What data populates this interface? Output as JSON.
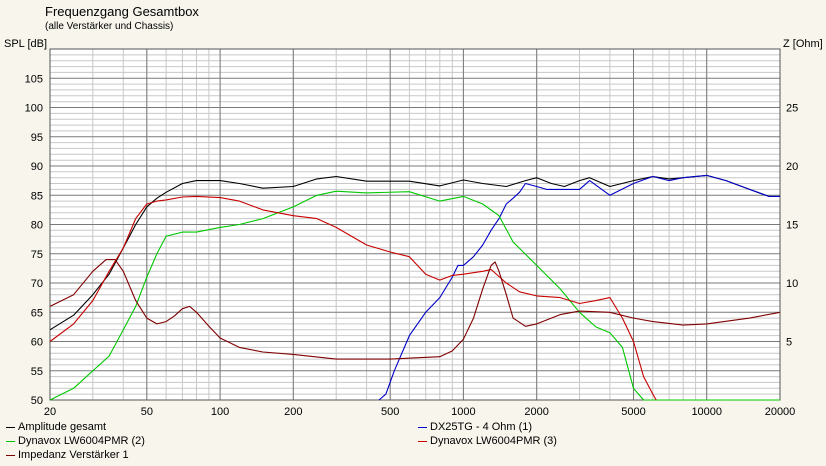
{
  "header": {
    "title": "Frequenzgang Gesamtbox",
    "subtitle": "(alle Verstärker und Chassis)"
  },
  "chart_data": {
    "type": "line",
    "xscale": "log",
    "xlim": [
      20,
      20000
    ],
    "ylim": [
      50,
      110
    ],
    "y2lim": [
      0,
      30
    ],
    "ylabel": "SPL [dB]",
    "y2label": "Z [Ohm]",
    "grid": true,
    "xticks": [
      20,
      50,
      100,
      200,
      500,
      1000,
      2000,
      5000,
      10000,
      20000
    ],
    "xtick_labels": [
      "20",
      "50",
      "100",
      "200",
      "500",
      "1000",
      "2000",
      "5000",
      "10000",
      "20000"
    ],
    "yticks": [
      50,
      55,
      60,
      65,
      70,
      75,
      80,
      85,
      90,
      95,
      100,
      105
    ],
    "ytick_labels": [
      "50",
      "55",
      "60",
      "65",
      "70",
      "75",
      "80",
      "85",
      "90",
      "95",
      "100",
      "105"
    ],
    "y2ticks": [
      5,
      10,
      15,
      20,
      25
    ],
    "y2tick_labels": [
      "5",
      "10",
      "15",
      "20",
      "25"
    ],
    "legend_position": "bottom",
    "series": [
      {
        "name": "Amplitude gesamt",
        "color": "#000000",
        "axis": "left",
        "points": [
          [
            20,
            62
          ],
          [
            25,
            64.5
          ],
          [
            30,
            68
          ],
          [
            35,
            71.5
          ],
          [
            40,
            76
          ],
          [
            45,
            80
          ],
          [
            50,
            83
          ],
          [
            55,
            84.5
          ],
          [
            60,
            85.5
          ],
          [
            70,
            87
          ],
          [
            80,
            87.5
          ],
          [
            100,
            87.5
          ],
          [
            120,
            87
          ],
          [
            150,
            86.2
          ],
          [
            200,
            86.5
          ],
          [
            250,
            87.8
          ],
          [
            300,
            88.2
          ],
          [
            400,
            87.4
          ],
          [
            600,
            87.4
          ],
          [
            800,
            86.6
          ],
          [
            1000,
            87.6
          ],
          [
            1200,
            87
          ],
          [
            1500,
            86.5
          ],
          [
            1800,
            87.5
          ],
          [
            2000,
            88
          ],
          [
            2300,
            87
          ],
          [
            2600,
            86.5
          ],
          [
            3000,
            87.5
          ],
          [
            3300,
            88
          ],
          [
            4000,
            86.5
          ],
          [
            5000,
            87.5
          ],
          [
            6000,
            88.2
          ],
          [
            7000,
            87.8
          ],
          [
            8000,
            88
          ],
          [
            10000,
            88.4
          ],
          [
            12000,
            87.5
          ],
          [
            15000,
            86
          ],
          [
            18000,
            84.8
          ],
          [
            20000,
            84.8
          ]
        ]
      },
      {
        "name": "DX25TG - 4 Ohm (1)",
        "color": "#0000c8",
        "axis": "left",
        "points": [
          [
            450,
            50
          ],
          [
            480,
            51
          ],
          [
            520,
            55
          ],
          [
            600,
            61
          ],
          [
            700,
            65
          ],
          [
            800,
            67.5
          ],
          [
            900,
            71
          ],
          [
            950,
            73
          ],
          [
            1000,
            73
          ],
          [
            1100,
            74.5
          ],
          [
            1200,
            76.5
          ],
          [
            1300,
            79
          ],
          [
            1400,
            81
          ],
          [
            1500,
            83.5
          ],
          [
            1600,
            84.5
          ],
          [
            1700,
            85.5
          ],
          [
            1800,
            87
          ],
          [
            2000,
            86.5
          ],
          [
            2200,
            86
          ],
          [
            2500,
            86
          ],
          [
            3000,
            86
          ],
          [
            3300,
            87.5
          ],
          [
            4000,
            85
          ],
          [
            5000,
            87
          ],
          [
            6000,
            88.2
          ],
          [
            7000,
            87.5
          ],
          [
            8000,
            88
          ],
          [
            10000,
            88.4
          ],
          [
            12000,
            87.5
          ],
          [
            15000,
            86
          ],
          [
            18000,
            84.8
          ],
          [
            20000,
            84.8
          ]
        ]
      },
      {
        "name": "Dynavox LW6004PMR (2)",
        "color": "#00c800",
        "axis": "left",
        "points": [
          [
            20,
            50
          ],
          [
            25,
            52
          ],
          [
            30,
            55
          ],
          [
            35,
            57.5
          ],
          [
            40,
            62
          ],
          [
            45,
            66
          ],
          [
            50,
            71
          ],
          [
            55,
            75
          ],
          [
            60,
            78
          ],
          [
            70,
            78.7
          ],
          [
            80,
            78.7
          ],
          [
            100,
            79.5
          ],
          [
            120,
            80
          ],
          [
            150,
            81
          ],
          [
            200,
            83
          ],
          [
            250,
            85
          ],
          [
            300,
            85.7
          ],
          [
            400,
            85.4
          ],
          [
            600,
            85.6
          ],
          [
            800,
            84
          ],
          [
            1000,
            84.8
          ],
          [
            1200,
            83.5
          ],
          [
            1400,
            81.5
          ],
          [
            1600,
            77
          ],
          [
            2000,
            73
          ],
          [
            2500,
            69
          ],
          [
            3000,
            65
          ],
          [
            3500,
            62.5
          ],
          [
            4000,
            61.5
          ],
          [
            4500,
            59
          ],
          [
            5000,
            52
          ],
          [
            5500,
            50
          ],
          [
            20000,
            50
          ]
        ]
      },
      {
        "name": "Dynavox LW6004PMR (3)",
        "color": "#c80000",
        "axis": "left",
        "points": [
          [
            20,
            60
          ],
          [
            25,
            63
          ],
          [
            30,
            67
          ],
          [
            35,
            72
          ],
          [
            40,
            76
          ],
          [
            45,
            81
          ],
          [
            50,
            83.5
          ],
          [
            55,
            84
          ],
          [
            60,
            84.2
          ],
          [
            70,
            84.7
          ],
          [
            80,
            84.8
          ],
          [
            100,
            84.6
          ],
          [
            120,
            84
          ],
          [
            150,
            82.5
          ],
          [
            200,
            81.5
          ],
          [
            250,
            81
          ],
          [
            300,
            79.5
          ],
          [
            400,
            76.5
          ],
          [
            500,
            75.3
          ],
          [
            600,
            74.5
          ],
          [
            700,
            71.5
          ],
          [
            800,
            70.5
          ],
          [
            900,
            71.3
          ],
          [
            1000,
            71.5
          ],
          [
            1200,
            72
          ],
          [
            1300,
            72.3
          ],
          [
            1500,
            70
          ],
          [
            1700,
            68.5
          ],
          [
            2000,
            67.8
          ],
          [
            2500,
            67.5
          ],
          [
            3000,
            66.5
          ],
          [
            3500,
            67
          ],
          [
            4000,
            67.5
          ],
          [
            4500,
            64
          ],
          [
            5000,
            60
          ],
          [
            5500,
            54
          ],
          [
            6000,
            51
          ],
          [
            6200,
            50
          ]
        ]
      },
      {
        "name": "Impedanz Verstärker 1",
        "color": "#800000",
        "axis": "right",
        "points": [
          [
            20,
            8
          ],
          [
            25,
            9
          ],
          [
            30,
            11
          ],
          [
            34,
            12
          ],
          [
            37,
            12
          ],
          [
            40,
            11
          ],
          [
            45,
            8.5
          ],
          [
            50,
            7
          ],
          [
            55,
            6.5
          ],
          [
            60,
            6.7
          ],
          [
            65,
            7.2
          ],
          [
            70,
            7.8
          ],
          [
            75,
            8
          ],
          [
            80,
            7.5
          ],
          [
            90,
            6.3
          ],
          [
            100,
            5.3
          ],
          [
            120,
            4.5
          ],
          [
            150,
            4.1
          ],
          [
            200,
            3.9
          ],
          [
            300,
            3.5
          ],
          [
            500,
            3.5
          ],
          [
            800,
            3.7
          ],
          [
            900,
            4.2
          ],
          [
            1000,
            5.2
          ],
          [
            1100,
            7
          ],
          [
            1200,
            9.5
          ],
          [
            1300,
            11.5
          ],
          [
            1350,
            11.8
          ],
          [
            1400,
            11
          ],
          [
            1500,
            9
          ],
          [
            1600,
            7
          ],
          [
            1800,
            6.3
          ],
          [
            2000,
            6.5
          ],
          [
            2500,
            7.3
          ],
          [
            3000,
            7.6
          ],
          [
            4000,
            7.5
          ],
          [
            5000,
            7
          ],
          [
            6000,
            6.7
          ],
          [
            8000,
            6.4
          ],
          [
            10000,
            6.5
          ],
          [
            15000,
            7
          ],
          [
            20000,
            7.5
          ]
        ]
      }
    ]
  }
}
